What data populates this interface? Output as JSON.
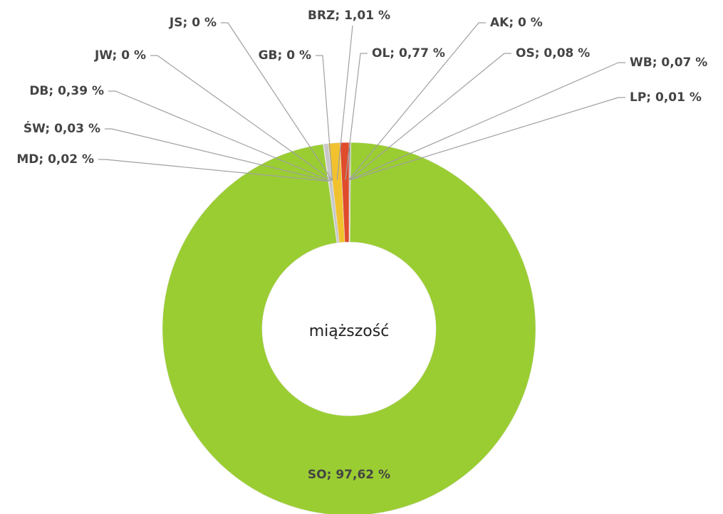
{
  "chart_data": {
    "type": "donut",
    "center_label": "miąższość",
    "values": [
      0,
      0.08,
      0.07,
      0.01,
      97.62,
      0.02,
      0.03,
      0.39,
      0,
      0,
      0,
      1.01,
      0.77
    ],
    "value_labels": [
      "AK; 0 %",
      "OS; 0,08 %",
      "WB; 0,07 %",
      "LP; 0,01 %",
      "SO; 97,62 %",
      "MD; 0,02 %",
      "ŚW; 0,03 %",
      "DB; 0,39 %",
      "JW; 0 %",
      "JS; 0 %",
      "GB; 0 %",
      "BRZ; 1,01 %",
      "OL; 0,77 %"
    ],
    "colors": [
      "#555555",
      "#3a3a3a",
      "#777777",
      "#999999",
      "#9acd32",
      "#8a8a8a",
      "#b0b0b0",
      "#c8c8c8",
      "#6a6a6a",
      "#9a9a9a",
      "#bdbdbd",
      "#f2c12e",
      "#e04b2b"
    ]
  }
}
